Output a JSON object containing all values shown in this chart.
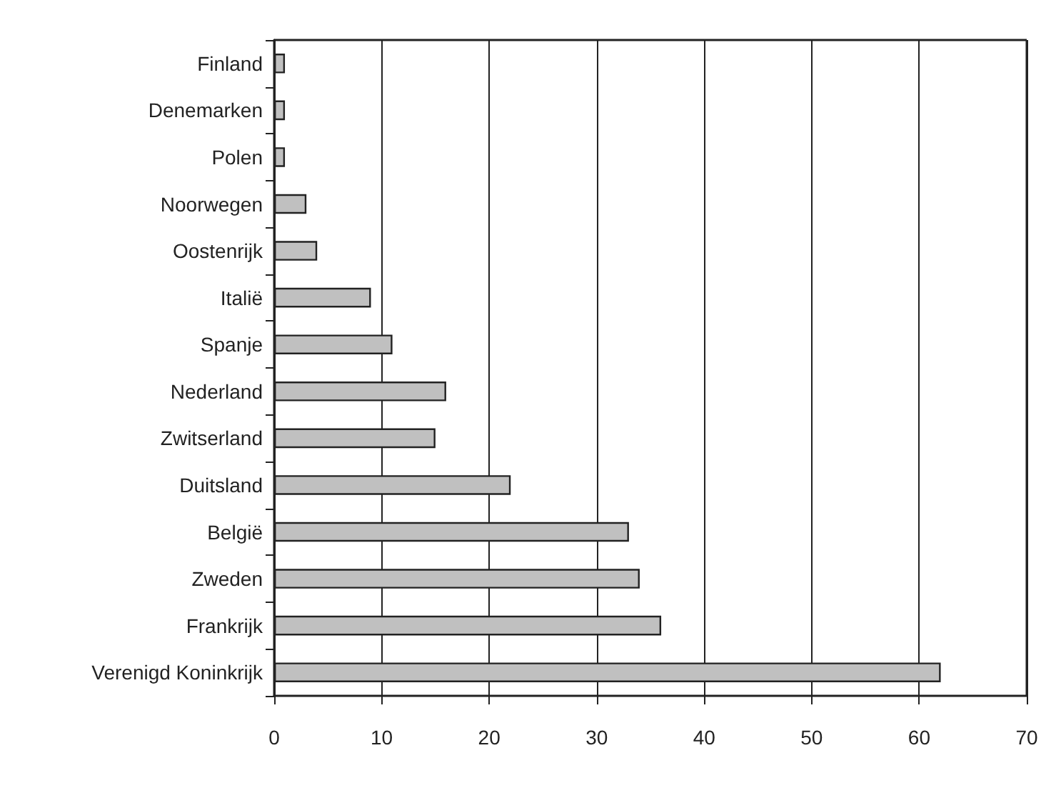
{
  "chart_data": {
    "type": "bar",
    "orientation": "horizontal",
    "categories": [
      "Finland",
      "Denemarken",
      "Polen",
      "Noorwegen",
      "Oostenrijk",
      "Italië",
      "Spanje",
      "Nederland",
      "Zwitserland",
      "Duitsland",
      "België",
      "Zweden",
      "Frankrijk",
      "Verenigd Koninkrijk"
    ],
    "values": [
      1,
      1,
      1,
      3,
      4,
      9,
      11,
      16,
      15,
      22,
      33,
      34,
      36,
      62
    ],
    "color": "#c0c0c0",
    "xlim": [
      0,
      70
    ],
    "xticks": [
      0,
      10,
      20,
      30,
      40,
      50,
      60,
      70
    ],
    "grid": "x"
  }
}
